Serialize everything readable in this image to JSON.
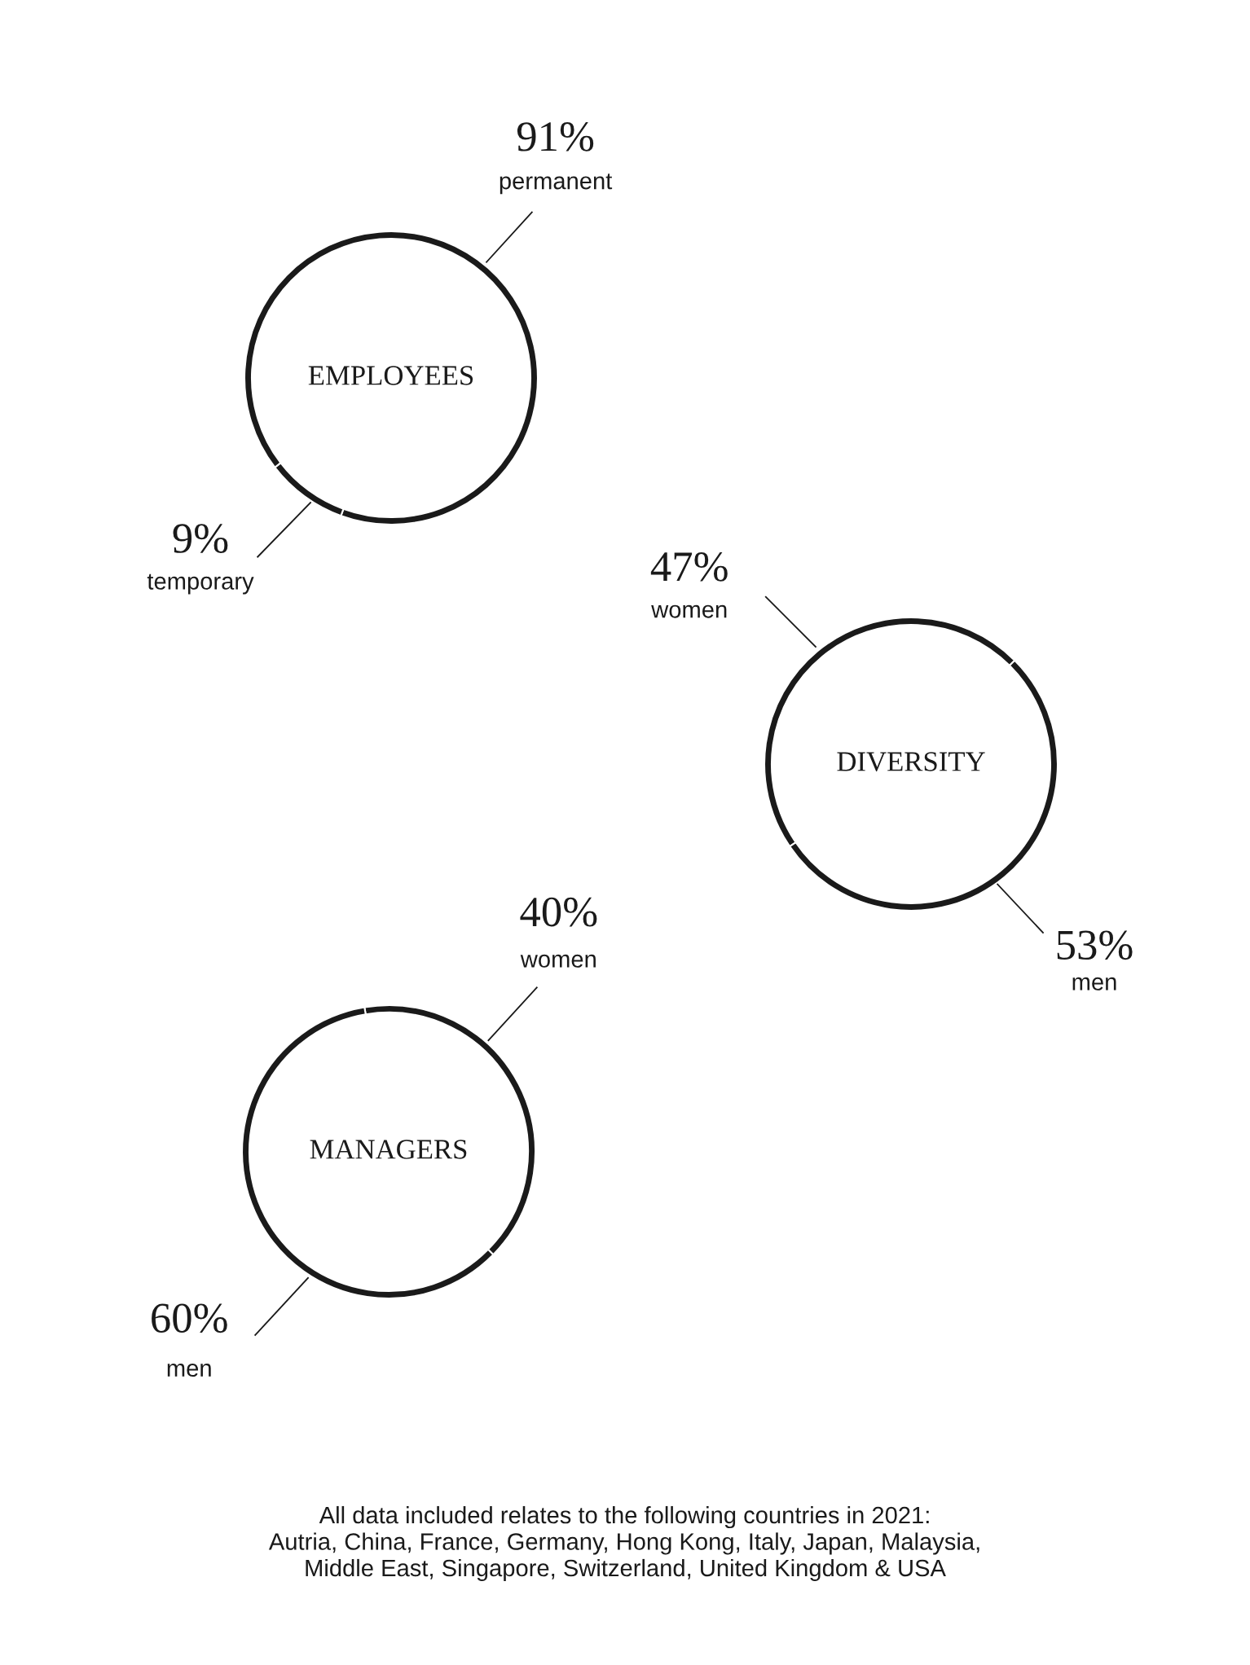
{
  "chart_data": [
    {
      "type": "donut",
      "title": "EMPLOYEES",
      "categories": [
        "permanent",
        "temporary"
      ],
      "values": [
        91,
        9
      ],
      "colors": [
        "#1a1a1a",
        "#1a1a1a"
      ],
      "value_labels": [
        "91%",
        "9%"
      ]
    },
    {
      "type": "donut",
      "title": "DIVERSITY",
      "categories": [
        "women",
        "men"
      ],
      "values": [
        47,
        53
      ],
      "colors": [
        "#1a1a1a",
        "#1a1a1a"
      ],
      "value_labels": [
        "47%",
        "53%"
      ]
    },
    {
      "type": "donut",
      "title": "MANAGERS",
      "categories": [
        "women",
        "men"
      ],
      "values": [
        40,
        60
      ],
      "colors": [
        "#1a1a1a",
        "#1a1a1a"
      ],
      "value_labels": [
        "40%",
        "60%"
      ],
      "annotations": [
        "All data included relates to the following countries in 2021:\nAutria, China, France, Germany, Hong Kong, Italy, Japan, Malaysia,\nMiddle East, Singapore, Switzerland, United Kingdom & USA"
      ]
    }
  ]
}
